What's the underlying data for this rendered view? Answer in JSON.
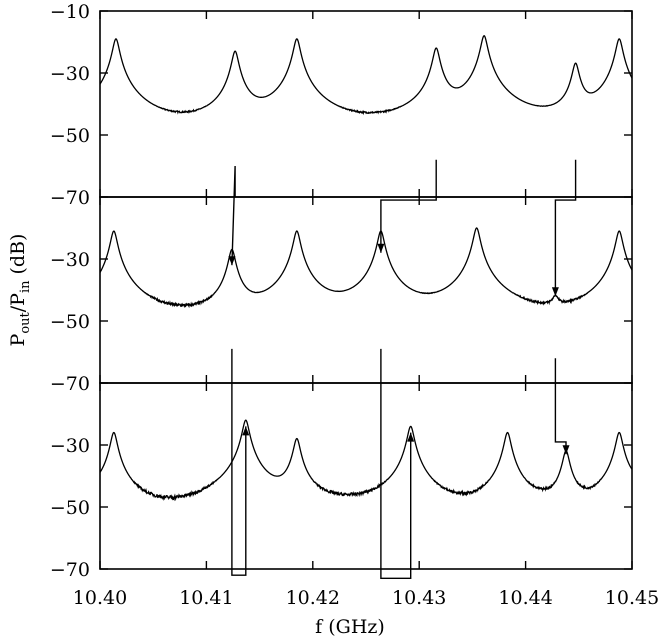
{
  "chart_data": {
    "type": "line",
    "xlabel": "f  (GHz)",
    "ylabel": {
      "main": "P",
      "sub1": "out",
      "slash": "/P",
      "sub2": "in",
      "unit": "  (dB)"
    },
    "xlim": [
      10.4,
      10.45
    ],
    "xticks": [
      10.4,
      10.41,
      10.42,
      10.43,
      10.44,
      10.45
    ],
    "xtick_labels": [
      "10.40",
      "10.41",
      "10.42",
      "10.43",
      "10.44",
      "10.45"
    ],
    "panels": [
      {
        "ylim": [
          -70,
          -10
        ],
        "yticks": [
          -10,
          -30,
          -50,
          -70
        ],
        "ytick_labels": [
          "−10",
          "−30",
          "−50",
          "−70"
        ],
        "series": [
          {
            "baseline": [
              [
                10.4,
                -52
              ],
              [
                10.403,
                -55
              ],
              [
                10.406,
                -56
              ],
              [
                10.409,
                -56
              ],
              [
                10.412,
                -58
              ],
              [
                10.415,
                -59
              ],
              [
                10.42,
                -57
              ],
              [
                10.424,
                -57
              ],
              [
                10.428,
                -56
              ],
              [
                10.433,
                -55
              ],
              [
                10.436,
                -57
              ],
              [
                10.44,
                -58
              ],
              [
                10.444,
                -59
              ],
              [
                10.446,
                -63
              ],
              [
                10.45,
                -47
              ]
            ],
            "peaks": [
              [
                10.4015,
                -19
              ],
              [
                10.4127,
                -23
              ],
              [
                10.4185,
                -19
              ],
              [
                10.4316,
                -22
              ],
              [
                10.4361,
                -18
              ],
              [
                10.4447,
                -27
              ],
              [
                10.4488,
                -19
              ]
            ]
          }
        ]
      },
      {
        "ylim": [
          -70,
          -10
        ],
        "yticks": [
          -30,
          -50,
          -70
        ],
        "ytick_labels": [
          "−30",
          "−50",
          "−70"
        ],
        "series": [
          {
            "baseline": [
              [
                10.4,
                -50
              ],
              [
                10.403,
                -55
              ],
              [
                10.406,
                -58
              ],
              [
                10.409,
                -59
              ],
              [
                10.412,
                -60
              ],
              [
                10.415,
                -60
              ],
              [
                10.42,
                -57
              ],
              [
                10.424,
                -55
              ],
              [
                10.428,
                -56
              ],
              [
                10.433,
                -57
              ],
              [
                10.437,
                -57
              ],
              [
                10.441,
                -59
              ],
              [
                10.443,
                -63
              ],
              [
                10.446,
                -60
              ],
              [
                10.45,
                -46
              ]
            ],
            "peaks": [
              [
                10.4013,
                -21
              ],
              [
                10.4124,
                -27
              ],
              [
                10.4185,
                -21
              ],
              [
                10.4264,
                -21
              ],
              [
                10.4354,
                -20
              ],
              [
                10.4428,
                -45
              ],
              [
                10.4488,
                -21
              ]
            ]
          }
        ]
      },
      {
        "ylim": [
          -70,
          -10
        ],
        "yticks": [
          -30,
          -50,
          -70
        ],
        "ytick_labels": [
          "−30",
          "−50",
          "−70"
        ],
        "series": [
          {
            "baseline": [
              [
                10.4,
                -48
              ],
              [
                10.403,
                -53
              ],
              [
                10.406,
                -57
              ],
              [
                10.409,
                -58
              ],
              [
                10.412,
                -56
              ],
              [
                10.415,
                -54
              ],
              [
                10.42,
                -55
              ],
              [
                10.424,
                -54
              ],
              [
                10.428,
                -52
              ],
              [
                10.431,
                -60
              ],
              [
                10.434,
                -64
              ],
              [
                10.437,
                -60
              ],
              [
                10.441,
                -55
              ],
              [
                10.444,
                -56
              ],
              [
                10.446,
                -56
              ],
              [
                10.45,
                -45
              ]
            ],
            "peaks": [
              [
                10.4013,
                -26
              ],
              [
                10.4137,
                -22
              ],
              [
                10.4185,
                -28
              ],
              [
                10.4292,
                -24
              ],
              [
                10.4383,
                -26
              ],
              [
                10.4438,
                -32
              ],
              [
                10.4488,
                -26
              ]
            ]
          }
        ]
      }
    ],
    "arrows": [
      {
        "points": [
          [
            0,
            10.4127,
            -70
          ],
          [
            0,
            10.4127,
            -60
          ],
          [
            1,
            10.4124,
            -32
          ]
        ]
      },
      {
        "points": [
          [
            0,
            10.4316,
            -70
          ],
          [
            0,
            10.4316,
            -58
          ],
          [
            0,
            10.4316,
            -71
          ],
          [
            0,
            10.4264,
            -71
          ],
          [
            1,
            10.4264,
            -28
          ]
        ]
      },
      {
        "points": [
          [
            0,
            10.4447,
            -58
          ],
          [
            0,
            10.4447,
            -71
          ],
          [
            0,
            10.4428,
            -71
          ],
          [
            1,
            10.4428,
            -42
          ]
        ]
      },
      {
        "points": [
          [
            1,
            10.4124,
            -59
          ],
          [
            2,
            10.4124,
            -72
          ],
          [
            2,
            10.4137,
            -72
          ],
          [
            2,
            10.4137,
            -24
          ]
        ]
      },
      {
        "points": [
          [
            1,
            10.4264,
            -59
          ],
          [
            2,
            10.4264,
            -73
          ],
          [
            2,
            10.4292,
            -73
          ],
          [
            2,
            10.4292,
            -26
          ]
        ]
      },
      {
        "points": [
          [
            1,
            10.4428,
            -62
          ],
          [
            2,
            10.4428,
            -29
          ],
          [
            2,
            10.4438,
            -29
          ],
          [
            2,
            10.4438,
            -33
          ]
        ]
      }
    ],
    "grid": false,
    "legend": "none"
  }
}
